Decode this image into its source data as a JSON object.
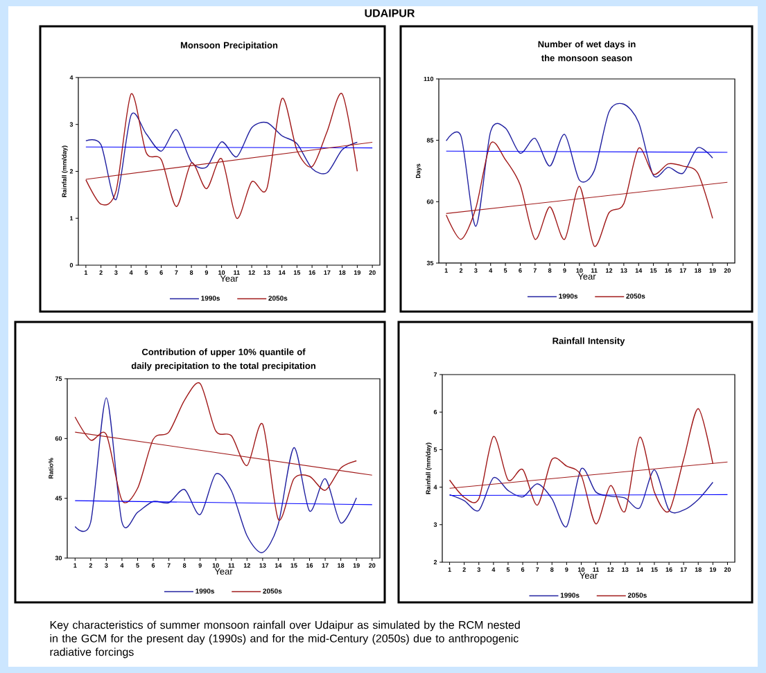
{
  "chart_data": [
    {
      "type": "other",
      "title": "UDAIPUR",
      "annotations": [
        "Key characteristics of summer monsoon rainfall over Udaipur as simulated by the RCM nested in the GCM for the present day (1990s) and for the mid-Century (2050s) due to anthropogenic radiative forcings"
      ]
    },
    {
      "type": "line",
      "title": "Monsoon Precipitation",
      "xlabel": "Year",
      "ylabel": "Rainfall (mm/day)",
      "legend": "bottom",
      "categories": [
        "1",
        "2",
        "3",
        "4",
        "5",
        "6",
        "7",
        "8",
        "9",
        "10",
        "11",
        "12",
        "13",
        "14",
        "15",
        "16",
        "17",
        "18",
        "19",
        "20"
      ],
      "ylim": [
        0,
        4
      ],
      "yticks": [
        0,
        1,
        2,
        3,
        4
      ],
      "series": [
        {
          "name": "1990s",
          "color": "#2020a0",
          "values": [
            2.65,
            2.57,
            1.4,
            3.2,
            2.8,
            2.43,
            2.89,
            2.2,
            2.09,
            2.63,
            2.31,
            2.93,
            3.04,
            2.76,
            2.59,
            2.06,
            1.97,
            2.46,
            2.62,
            null
          ]
        },
        {
          "name": "2050s",
          "color": "#a01818",
          "values": [
            1.82,
            1.3,
            1.58,
            3.65,
            2.4,
            2.25,
            1.25,
            2.18,
            1.63,
            2.27,
            1.0,
            1.78,
            1.63,
            3.55,
            2.45,
            2.1,
            2.85,
            3.65,
            2.0,
            null
          ]
        },
        {
          "type": "line",
          "color": "#0000ff",
          "x": [
            "1",
            "20"
          ],
          "values": [
            2.52,
            2.5
          ]
        },
        {
          "type": "line",
          "color": "#a01818",
          "x": [
            "1",
            "20"
          ],
          "values": [
            1.83,
            2.62
          ]
        }
      ]
    },
    {
      "type": "line",
      "title": "Number of wet days in the monsoon season",
      "xlabel": "Year",
      "ylabel": "Days",
      "legend": "bottom",
      "categories": [
        "1",
        "2",
        "3",
        "4",
        "5",
        "6",
        "7",
        "8",
        "9",
        "10",
        "11",
        "12",
        "13",
        "14",
        "15",
        "16",
        "17",
        "18",
        "19",
        "20"
      ],
      "ylim": [
        35,
        110
      ],
      "yticks": [
        35,
        60,
        85,
        110
      ],
      "series": [
        {
          "name": "1990s",
          "color": "#2020a0",
          "values": [
            84.8,
            86.7,
            50,
            88.6,
            90,
            79.7,
            85.8,
            74.5,
            87.4,
            68.8,
            72.6,
            96.6,
            99.7,
            92.3,
            70.7,
            74,
            71.6,
            82,
            77.8,
            null
          ]
        },
        {
          "name": "2050s",
          "color": "#a01818",
          "values": [
            54.6,
            44.7,
            57.4,
            83.7,
            77.1,
            66.8,
            44.7,
            57.9,
            44.7,
            66.3,
            41.9,
            55.5,
            59.2,
            81.8,
            71.2,
            75.4,
            74.5,
            71.6,
            53.2,
            null
          ]
        },
        {
          "type": "line",
          "color": "#0000ff",
          "x": [
            "1",
            "20"
          ],
          "values": [
            80.6,
            80.1
          ]
        },
        {
          "type": "line",
          "color": "#a01818",
          "x": [
            "1",
            "20"
          ],
          "values": [
            55.2,
            67.9
          ]
        }
      ]
    },
    {
      "type": "line",
      "title": "Contribution of upper 10% quantile of daily precipitation to the total precipitation",
      "xlabel": "Year",
      "ylabel": "Ratio%",
      "legend": "bottom",
      "categories": [
        "1",
        "2",
        "3",
        "4",
        "5",
        "6",
        "7",
        "8",
        "9",
        "10",
        "11",
        "12",
        "13",
        "14",
        "15",
        "16",
        "17",
        "18",
        "19",
        "20"
      ],
      "ylim": [
        30,
        75
      ],
      "yticks": [
        30,
        45,
        60,
        75
      ],
      "series": [
        {
          "name": "1990s",
          "color": "#2020a0",
          "values": [
            37.9,
            39,
            70.2,
            39,
            41.5,
            44.2,
            43.9,
            47.2,
            40.9,
            51.1,
            46.9,
            35.6,
            31.4,
            38.5,
            57.7,
            41.8,
            49.9,
            38.8,
            45.1,
            null
          ]
        },
        {
          "name": "2050s",
          "color": "#a01818",
          "values": [
            65.4,
            59.6,
            61,
            44.5,
            47.5,
            59.8,
            61.6,
            69.6,
            73.8,
            61.9,
            60.7,
            53.2,
            63.6,
            39.7,
            49.9,
            50.5,
            47,
            52.6,
            54.4,
            null
          ]
        },
        {
          "type": "line",
          "color": "#0000ff",
          "x": [
            "1",
            "20"
          ],
          "values": [
            44.4,
            43.4
          ]
        },
        {
          "type": "line",
          "color": "#a01818",
          "x": [
            "1",
            "20"
          ],
          "values": [
            61.6,
            50.8
          ]
        }
      ]
    },
    {
      "type": "line",
      "title": "Rainfall Intensity",
      "xlabel": "Year",
      "ylabel": "Rainfall (mm/day)",
      "legend": "bottom",
      "categories": [
        "1",
        "2",
        "3",
        "4",
        "5",
        "6",
        "7",
        "8",
        "9",
        "10",
        "11",
        "12",
        "13",
        "14",
        "15",
        "16",
        "17",
        "18",
        "19",
        "20"
      ],
      "ylim": [
        2,
        7
      ],
      "yticks": [
        2,
        3,
        4,
        5,
        6,
        7
      ],
      "series": [
        {
          "name": "1990s",
          "color": "#2020a0",
          "values": [
            3.8,
            3.64,
            3.38,
            4.25,
            3.91,
            3.74,
            4.09,
            3.69,
            2.95,
            4.49,
            3.87,
            3.76,
            3.71,
            3.45,
            4.46,
            3.39,
            3.39,
            3.67,
            4.13,
            null
          ]
        },
        {
          "name": "2050s",
          "color": "#a01818",
          "values": [
            4.19,
            3.73,
            3.69,
            5.35,
            4.19,
            4.47,
            3.52,
            4.74,
            4.56,
            4.31,
            3.02,
            4.04,
            3.36,
            5.33,
            3.87,
            3.36,
            4.74,
            6.09,
            4.62,
            null
          ]
        },
        {
          "type": "line",
          "color": "#0000ff",
          "x": [
            "1",
            "20"
          ],
          "values": [
            3.78,
            3.8
          ]
        },
        {
          "type": "line",
          "color": "#a01818",
          "x": [
            "1",
            "20"
          ],
          "values": [
            3.97,
            4.67
          ]
        }
      ]
    }
  ]
}
